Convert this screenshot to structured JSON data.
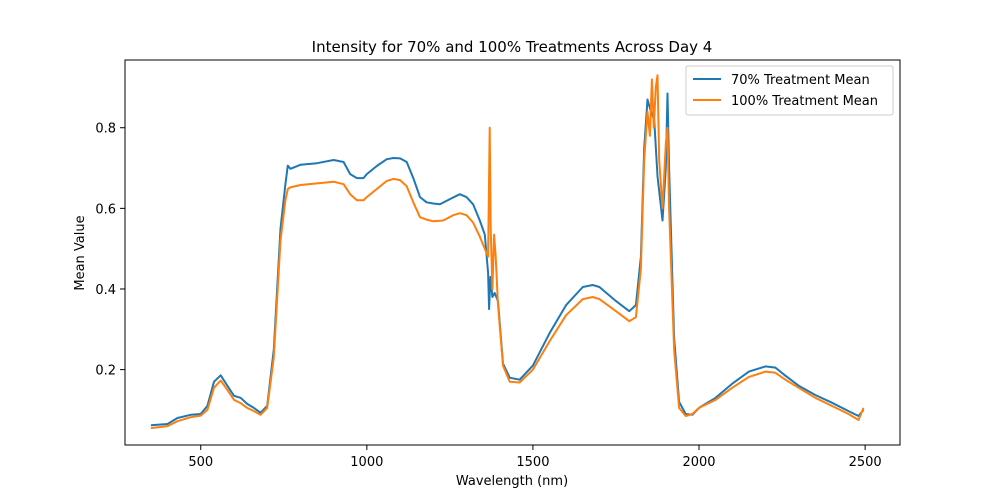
{
  "chart_data": {
    "type": "line",
    "title": "Intensity for 70% and 100% Treatments Across Day 4",
    "xlabel": "Wavelength (nm)",
    "ylabel": "Mean Value",
    "xlim": [
      272,
      2605
    ],
    "ylim": [
      0.013,
      0.968
    ],
    "xticks": [
      500,
      1000,
      1500,
      2000,
      2500
    ],
    "yticks": [
      0.2,
      0.4,
      0.6,
      0.8
    ],
    "xtick_labels": [
      "500",
      "1000",
      "1500",
      "2000",
      "2500"
    ],
    "ytick_labels": [
      "0.2",
      "0.4",
      "0.6",
      "0.8"
    ],
    "grid": false,
    "legend_position": "top-right",
    "series": [
      {
        "name": "70% Treatment Mean",
        "color": "#1f77b4",
        "points": [
          [
            350,
            0.062
          ],
          [
            400,
            0.065
          ],
          [
            430,
            0.08
          ],
          [
            470,
            0.088
          ],
          [
            500,
            0.09
          ],
          [
            520,
            0.11
          ],
          [
            540,
            0.17
          ],
          [
            560,
            0.186
          ],
          [
            580,
            0.16
          ],
          [
            600,
            0.135
          ],
          [
            620,
            0.13
          ],
          [
            640,
            0.115
          ],
          [
            660,
            0.105
          ],
          [
            680,
            0.093
          ],
          [
            700,
            0.11
          ],
          [
            720,
            0.25
          ],
          [
            740,
            0.55
          ],
          [
            755,
            0.66
          ],
          [
            762,
            0.706
          ],
          [
            770,
            0.698
          ],
          [
            800,
            0.708
          ],
          [
            850,
            0.712
          ],
          [
            900,
            0.72
          ],
          [
            930,
            0.715
          ],
          [
            950,
            0.685
          ],
          [
            970,
            0.675
          ],
          [
            990,
            0.675
          ],
          [
            1000,
            0.685
          ],
          [
            1030,
            0.705
          ],
          [
            1060,
            0.722
          ],
          [
            1080,
            0.725
          ],
          [
            1100,
            0.724
          ],
          [
            1120,
            0.715
          ],
          [
            1140,
            0.675
          ],
          [
            1160,
            0.628
          ],
          [
            1180,
            0.615
          ],
          [
            1200,
            0.612
          ],
          [
            1220,
            0.61
          ],
          [
            1250,
            0.623
          ],
          [
            1280,
            0.635
          ],
          [
            1300,
            0.628
          ],
          [
            1320,
            0.61
          ],
          [
            1340,
            0.57
          ],
          [
            1355,
            0.535
          ],
          [
            1365,
            0.44
          ],
          [
            1368,
            0.35
          ],
          [
            1372,
            0.43
          ],
          [
            1378,
            0.38
          ],
          [
            1385,
            0.39
          ],
          [
            1395,
            0.37
          ],
          [
            1410,
            0.215
          ],
          [
            1430,
            0.18
          ],
          [
            1460,
            0.175
          ],
          [
            1500,
            0.21
          ],
          [
            1550,
            0.29
          ],
          [
            1600,
            0.36
          ],
          [
            1650,
            0.405
          ],
          [
            1680,
            0.41
          ],
          [
            1700,
            0.405
          ],
          [
            1750,
            0.37
          ],
          [
            1790,
            0.345
          ],
          [
            1810,
            0.36
          ],
          [
            1825,
            0.48
          ],
          [
            1835,
            0.75
          ],
          [
            1845,
            0.87
          ],
          [
            1855,
            0.84
          ],
          [
            1865,
            0.82
          ],
          [
            1875,
            0.68
          ],
          [
            1890,
            0.57
          ],
          [
            1900,
            0.7
          ],
          [
            1905,
            0.885
          ],
          [
            1910,
            0.7
          ],
          [
            1925,
            0.28
          ],
          [
            1940,
            0.12
          ],
          [
            1960,
            0.09
          ],
          [
            1980,
            0.088
          ],
          [
            2000,
            0.105
          ],
          [
            2050,
            0.13
          ],
          [
            2100,
            0.165
          ],
          [
            2150,
            0.195
          ],
          [
            2200,
            0.208
          ],
          [
            2230,
            0.205
          ],
          [
            2260,
            0.185
          ],
          [
            2300,
            0.16
          ],
          [
            2350,
            0.137
          ],
          [
            2400,
            0.118
          ],
          [
            2450,
            0.097
          ],
          [
            2480,
            0.085
          ],
          [
            2495,
            0.1
          ]
        ]
      },
      {
        "name": "100% Treatment Mean",
        "color": "#ff7f0e",
        "points": [
          [
            350,
            0.055
          ],
          [
            400,
            0.06
          ],
          [
            430,
            0.072
          ],
          [
            470,
            0.082
          ],
          [
            500,
            0.086
          ],
          [
            520,
            0.1
          ],
          [
            540,
            0.155
          ],
          [
            560,
            0.173
          ],
          [
            580,
            0.15
          ],
          [
            600,
            0.125
          ],
          [
            620,
            0.117
          ],
          [
            640,
            0.105
          ],
          [
            660,
            0.097
          ],
          [
            680,
            0.088
          ],
          [
            700,
            0.105
          ],
          [
            720,
            0.23
          ],
          [
            740,
            0.52
          ],
          [
            755,
            0.62
          ],
          [
            762,
            0.648
          ],
          [
            770,
            0.652
          ],
          [
            800,
            0.658
          ],
          [
            850,
            0.662
          ],
          [
            900,
            0.666
          ],
          [
            930,
            0.66
          ],
          [
            950,
            0.635
          ],
          [
            970,
            0.62
          ],
          [
            990,
            0.62
          ],
          [
            1000,
            0.628
          ],
          [
            1030,
            0.648
          ],
          [
            1060,
            0.668
          ],
          [
            1080,
            0.673
          ],
          [
            1100,
            0.67
          ],
          [
            1120,
            0.655
          ],
          [
            1140,
            0.615
          ],
          [
            1160,
            0.578
          ],
          [
            1180,
            0.572
          ],
          [
            1200,
            0.568
          ],
          [
            1230,
            0.57
          ],
          [
            1260,
            0.583
          ],
          [
            1280,
            0.588
          ],
          [
            1300,
            0.583
          ],
          [
            1320,
            0.565
          ],
          [
            1340,
            0.53
          ],
          [
            1355,
            0.5
          ],
          [
            1365,
            0.48
          ],
          [
            1370,
            0.8
          ],
          [
            1373,
            0.55
          ],
          [
            1378,
            0.4
          ],
          [
            1383,
            0.535
          ],
          [
            1388,
            0.48
          ],
          [
            1395,
            0.36
          ],
          [
            1410,
            0.21
          ],
          [
            1430,
            0.17
          ],
          [
            1460,
            0.168
          ],
          [
            1500,
            0.2
          ],
          [
            1550,
            0.27
          ],
          [
            1600,
            0.335
          ],
          [
            1650,
            0.375
          ],
          [
            1680,
            0.38
          ],
          [
            1700,
            0.375
          ],
          [
            1750,
            0.345
          ],
          [
            1790,
            0.32
          ],
          [
            1810,
            0.33
          ],
          [
            1825,
            0.45
          ],
          [
            1835,
            0.72
          ],
          [
            1845,
            0.84
          ],
          [
            1852,
            0.78
          ],
          [
            1858,
            0.92
          ],
          [
            1864,
            0.8
          ],
          [
            1870,
            0.9
          ],
          [
            1875,
            0.93
          ],
          [
            1880,
            0.72
          ],
          [
            1890,
            0.6
          ],
          [
            1900,
            0.76
          ],
          [
            1905,
            0.8
          ],
          [
            1910,
            0.6
          ],
          [
            1925,
            0.25
          ],
          [
            1940,
            0.105
          ],
          [
            1960,
            0.085
          ],
          [
            1980,
            0.09
          ],
          [
            2000,
            0.105
          ],
          [
            2050,
            0.125
          ],
          [
            2100,
            0.155
          ],
          [
            2150,
            0.182
          ],
          [
            2200,
            0.195
          ],
          [
            2230,
            0.192
          ],
          [
            2260,
            0.175
          ],
          [
            2300,
            0.155
          ],
          [
            2350,
            0.13
          ],
          [
            2400,
            0.11
          ],
          [
            2450,
            0.09
          ],
          [
            2480,
            0.075
          ],
          [
            2495,
            0.105
          ]
        ]
      }
    ]
  }
}
